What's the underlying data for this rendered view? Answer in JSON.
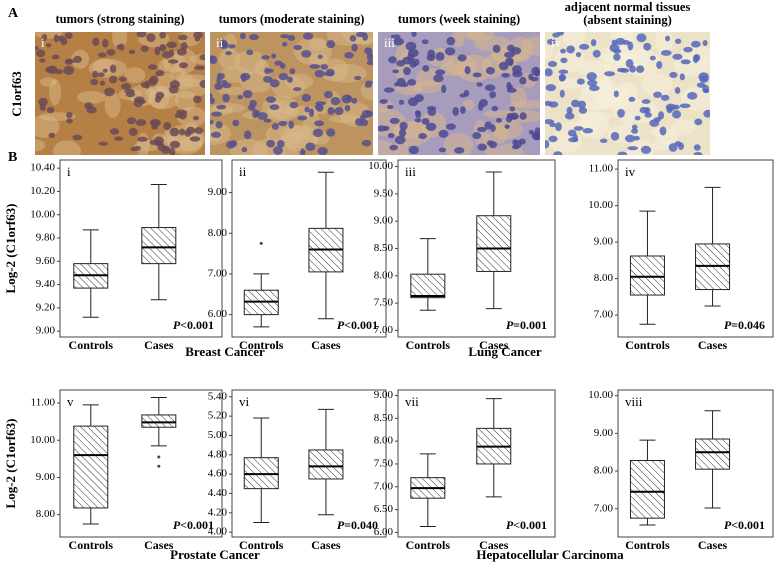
{
  "panel_a": {
    "label": "A",
    "row_label": "C1orf63",
    "images": [
      {
        "numeral": "i",
        "title": [
          "tumors (strong staining)"
        ]
      },
      {
        "numeral": "ii",
        "title": [
          "tumors (moderate staining)"
        ]
      },
      {
        "numeral": "iii",
        "title": [
          "tumors (week staining)"
        ]
      },
      {
        "numeral": "iv",
        "title": [
          "adjacent normal tissues",
          "(absent staining)"
        ]
      }
    ]
  },
  "panel_b_label": "B",
  "disease_labels": [
    "Breast Cancer",
    "Lung Cancer",
    "Prostate Cancer",
    "Hepatocellular Carcinoma"
  ],
  "chart_data": [
    {
      "type": "box",
      "numeral": "i",
      "y_label": "Log-2 (C1orf63)",
      "categories": [
        "Controls",
        "Cases"
      ],
      "boxes": [
        {
          "low": 9.12,
          "q1": 9.37,
          "median": 9.48,
          "q3": 9.58,
          "high": 9.87,
          "outliers": []
        },
        {
          "low": 9.27,
          "q1": 9.58,
          "median": 9.72,
          "q3": 9.89,
          "high": 10.26,
          "outliers": []
        }
      ],
      "p_symbol": "P",
      "p_text": "<0.001",
      "ylim": [
        8.95,
        10.47
      ],
      "yticks": [
        {
          "value": 9,
          "label": "9.00"
        },
        {
          "value": 9.2,
          "label": "9.20"
        },
        {
          "value": 9.4,
          "label": "9.40"
        },
        {
          "value": 9.6,
          "label": "9.60"
        },
        {
          "value": 9.8,
          "label": "9.80"
        },
        {
          "value": 10,
          "label": "10.00"
        },
        {
          "value": 10.2,
          "label": "10.20"
        },
        {
          "value": 10.4,
          "label": "10.40"
        }
      ]
    },
    {
      "type": "box",
      "numeral": "ii",
      "categories": [
        "Controls",
        "Cases"
      ],
      "boxes": [
        {
          "low": 5.7,
          "q1": 6.0,
          "median": 6.32,
          "q3": 6.6,
          "high": 7.0,
          "outliers": [
            7.75
          ]
        },
        {
          "low": 5.9,
          "q1": 7.05,
          "median": 7.6,
          "q3": 8.12,
          "high": 9.5,
          "outliers": []
        }
      ],
      "p_symbol": "P",
      "p_text": "<0.001",
      "ylim": [
        5.45,
        9.8
      ],
      "yticks": [
        {
          "value": 6,
          "label": "6.00"
        },
        {
          "value": 7,
          "label": "7.00"
        },
        {
          "value": 8,
          "label": "8.00"
        },
        {
          "value": 9,
          "label": "9.00"
        }
      ]
    },
    {
      "type": "box",
      "numeral": "iii",
      "categories": [
        "Controls",
        "Cases"
      ],
      "boxes": [
        {
          "low": 7.37,
          "q1": 7.6,
          "median": 7.63,
          "q3": 8.03,
          "high": 8.68,
          "outliers": []
        },
        {
          "low": 7.4,
          "q1": 8.08,
          "median": 8.5,
          "q3": 9.1,
          "high": 9.9,
          "outliers": []
        }
      ],
      "p_symbol": "P",
      "p_text": "=0.001",
      "ylim": [
        6.88,
        10.12
      ],
      "yticks": [
        {
          "value": 7,
          "label": "7.00"
        },
        {
          "value": 7.5,
          "label": "7.50"
        },
        {
          "value": 8,
          "label": "8.00"
        },
        {
          "value": 8.5,
          "label": "8.50"
        },
        {
          "value": 9,
          "label": "9.00"
        },
        {
          "value": 9.5,
          "label": "9.50"
        },
        {
          "value": 10,
          "label": "10.00"
        }
      ]
    },
    {
      "type": "box",
      "numeral": "iv",
      "categories": [
        "Controls",
        "Cases"
      ],
      "boxes": [
        {
          "low": 6.75,
          "q1": 7.55,
          "median": 8.05,
          "q3": 8.62,
          "high": 9.85,
          "outliers": []
        },
        {
          "low": 7.25,
          "q1": 7.7,
          "median": 8.35,
          "q3": 8.95,
          "high": 10.5,
          "outliers": []
        }
      ],
      "p_symbol": "P",
      "p_text": "=0.046",
      "ylim": [
        6.4,
        11.25
      ],
      "yticks": [
        {
          "value": 7,
          "label": "7.00"
        },
        {
          "value": 8,
          "label": "8.00"
        },
        {
          "value": 9,
          "label": "9.00"
        },
        {
          "value": 10,
          "label": "10.00"
        },
        {
          "value": 11,
          "label": "11.00"
        }
      ]
    },
    {
      "type": "box",
      "numeral": "v",
      "y_label": "Log-2 (C1orf63)",
      "categories": [
        "Controls",
        "Cases"
      ],
      "boxes": [
        {
          "low": 7.75,
          "q1": 8.18,
          "median": 9.6,
          "q3": 10.38,
          "high": 10.95,
          "outliers": []
        },
        {
          "low": 9.85,
          "q1": 10.35,
          "median": 10.48,
          "q3": 10.68,
          "high": 11.15,
          "outliers": [
            9.55,
            9.3
          ]
        }
      ],
      "p_symbol": "P",
      "p_text": "<0.001",
      "ylim": [
        7.4,
        11.35
      ],
      "yticks": [
        {
          "value": 8,
          "label": "8.00"
        },
        {
          "value": 9,
          "label": "9.00"
        },
        {
          "value": 10,
          "label": "10.00"
        },
        {
          "value": 11,
          "label": "11.00"
        }
      ]
    },
    {
      "type": "box",
      "numeral": "vi",
      "categories": [
        "Controls",
        "Cases"
      ],
      "boxes": [
        {
          "low": 4.1,
          "q1": 4.45,
          "median": 4.6,
          "q3": 4.77,
          "high": 5.18,
          "outliers": []
        },
        {
          "low": 4.18,
          "q1": 4.55,
          "median": 4.68,
          "q3": 4.85,
          "high": 5.27,
          "outliers": []
        }
      ],
      "p_symbol": "P",
      "p_text": "=0.040",
      "ylim": [
        3.95,
        5.47
      ],
      "yticks": [
        {
          "value": 4,
          "label": "4.00"
        },
        {
          "value": 4.2,
          "label": "4.20"
        },
        {
          "value": 4.4,
          "label": "4.40"
        },
        {
          "value": 4.6,
          "label": "4.60"
        },
        {
          "value": 4.8,
          "label": "4.80"
        },
        {
          "value": 5,
          "label": "5.00"
        },
        {
          "value": 5.2,
          "label": "5.20"
        },
        {
          "value": 5.4,
          "label": "5.40"
        }
      ]
    },
    {
      "type": "box",
      "numeral": "vii",
      "categories": [
        "Controls",
        "Cases"
      ],
      "boxes": [
        {
          "low": 6.13,
          "q1": 6.75,
          "median": 6.97,
          "q3": 7.2,
          "high": 7.72,
          "outliers": []
        },
        {
          "low": 6.78,
          "q1": 7.5,
          "median": 7.88,
          "q3": 8.28,
          "high": 8.93,
          "outliers": []
        }
      ],
      "p_symbol": "P",
      "p_text": "<0.001",
      "ylim": [
        5.9,
        9.12
      ],
      "yticks": [
        {
          "value": 6,
          "label": "6.00"
        },
        {
          "value": 6.5,
          "label": "6.50"
        },
        {
          "value": 7,
          "label": "7.00"
        },
        {
          "value": 7.5,
          "label": "7.50"
        },
        {
          "value": 8,
          "label": "8.00"
        },
        {
          "value": 8.5,
          "label": "8.50"
        },
        {
          "value": 9,
          "label": "9.00"
        }
      ]
    },
    {
      "type": "box",
      "numeral": "viii",
      "categories": [
        "Controls",
        "Cases"
      ],
      "boxes": [
        {
          "low": 6.57,
          "q1": 6.75,
          "median": 7.45,
          "q3": 8.28,
          "high": 8.82,
          "outliers": []
        },
        {
          "low": 7.02,
          "q1": 8.05,
          "median": 8.5,
          "q3": 8.85,
          "high": 9.6,
          "outliers": []
        }
      ],
      "p_symbol": "P",
      "p_text": "<0.001",
      "ylim": [
        6.25,
        10.15
      ],
      "yticks": [
        {
          "value": 7,
          "label": "7.00"
        },
        {
          "value": 8,
          "label": "8.00"
        },
        {
          "value": 9,
          "label": "9.00"
        },
        {
          "value": 10,
          "label": "10.00"
        }
      ]
    }
  ]
}
